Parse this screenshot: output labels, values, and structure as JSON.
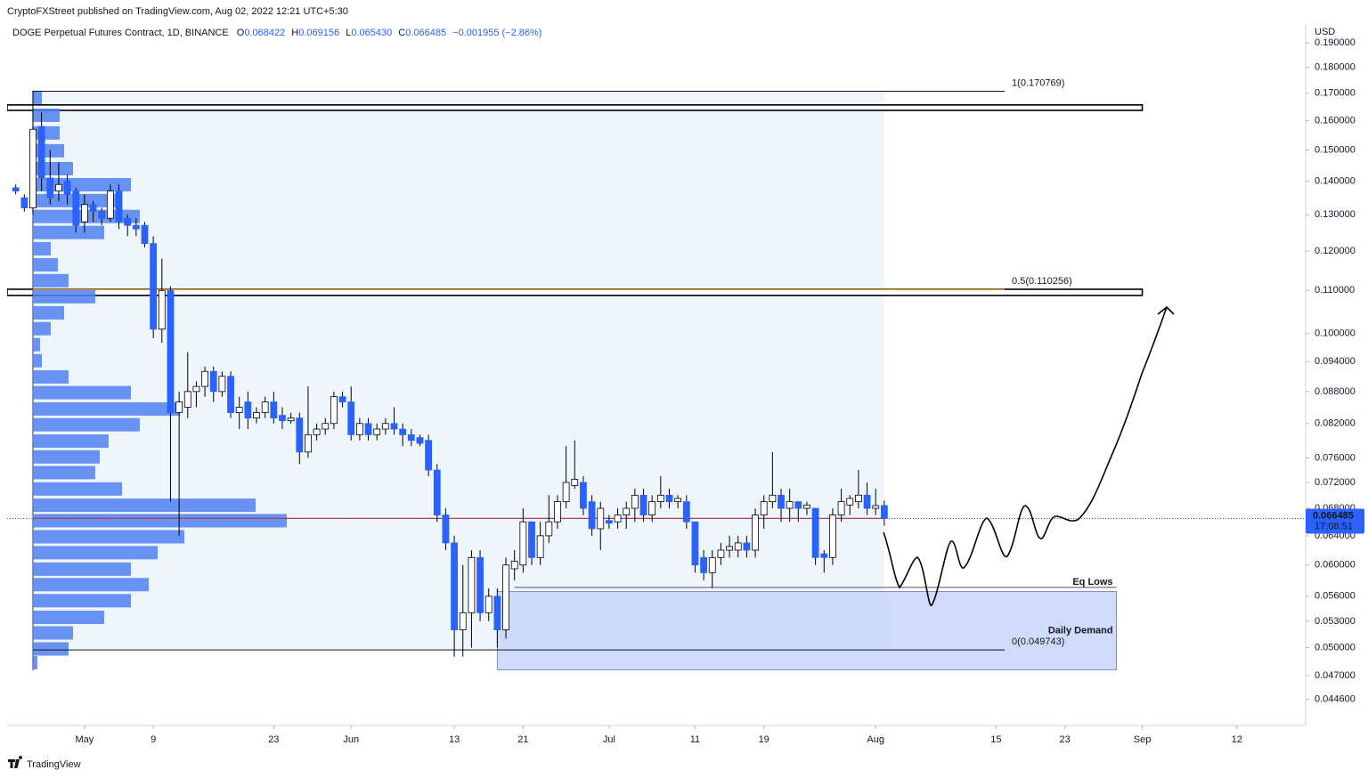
{
  "chart_data": {
    "type": "candlestick",
    "header": {
      "publisher": "CryptoFXStreet published on TradingView.com, Aug 02, 2022 12:21 UTC+5:30",
      "symbol": "DOGE Perpetual Futures Contract, 1D, BINANCE",
      "ohlc": [
        {
          "label": "O",
          "value": "0.068422"
        },
        {
          "label": "H",
          "value": "0.069156"
        },
        {
          "label": "L",
          "value": "0.065430"
        },
        {
          "label": "C",
          "value": "0.066485"
        }
      ],
      "change": "−0.001955 (−2.86%)"
    },
    "currency": "USD",
    "brand": "TradingView",
    "x": [
      "2022-04-23",
      "2022-04-24",
      "2022-04-25",
      "2022-04-26",
      "2022-04-27",
      "2022-04-28",
      "2022-04-29",
      "2022-04-30",
      "2022-05-01",
      "2022-05-02",
      "2022-05-03",
      "2022-05-04",
      "2022-05-05",
      "2022-05-06",
      "2022-05-07",
      "2022-05-08",
      "2022-05-09",
      "2022-05-10",
      "2022-05-11",
      "2022-05-12",
      "2022-05-13",
      "2022-05-14",
      "2022-05-15",
      "2022-05-16",
      "2022-05-17",
      "2022-05-18",
      "2022-05-19",
      "2022-05-20",
      "2022-05-21",
      "2022-05-22",
      "2022-05-23",
      "2022-05-24",
      "2022-05-25",
      "2022-05-26",
      "2022-05-27",
      "2022-05-28",
      "2022-05-29",
      "2022-05-30",
      "2022-05-31",
      "2022-06-01",
      "2022-06-02",
      "2022-06-03",
      "2022-06-04",
      "2022-06-05",
      "2022-06-06",
      "2022-06-07",
      "2022-06-08",
      "2022-06-09",
      "2022-06-10",
      "2022-06-11",
      "2022-06-12",
      "2022-06-13",
      "2022-06-14",
      "2022-06-15",
      "2022-06-16",
      "2022-06-17",
      "2022-06-18",
      "2022-06-19",
      "2022-06-20",
      "2022-06-21",
      "2022-06-22",
      "2022-06-23",
      "2022-06-24",
      "2022-06-25",
      "2022-06-26",
      "2022-06-27",
      "2022-06-28",
      "2022-06-29",
      "2022-06-30",
      "2022-07-01",
      "2022-07-02",
      "2022-07-03",
      "2022-07-04",
      "2022-07-05",
      "2022-07-06",
      "2022-07-07",
      "2022-07-08",
      "2022-07-09",
      "2022-07-10",
      "2022-07-11",
      "2022-07-12",
      "2022-07-13",
      "2022-07-14",
      "2022-07-15",
      "2022-07-16",
      "2022-07-17",
      "2022-07-18",
      "2022-07-19",
      "2022-07-20",
      "2022-07-21",
      "2022-07-22",
      "2022-07-23",
      "2022-07-24",
      "2022-07-25",
      "2022-07-26",
      "2022-07-27",
      "2022-07-28",
      "2022-07-29",
      "2022-07-30",
      "2022-07-31",
      "2022-08-01",
      "2022-08-02"
    ],
    "open": [
      0.138,
      0.135,
      0.132,
      0.158,
      0.141,
      0.137,
      0.14,
      0.137,
      0.128,
      0.133,
      0.131,
      0.129,
      0.137,
      0.129,
      0.127,
      0.127,
      0.122,
      0.101,
      0.11,
      0.084,
      0.085,
      0.088,
      0.089,
      0.092,
      0.088,
      0.091,
      0.084,
      0.086,
      0.083,
      0.084,
      0.086,
      0.0835,
      0.0825,
      0.083,
      0.077,
      0.08,
      0.081,
      0.082,
      0.087,
      0.086,
      0.08,
      0.082,
      0.08,
      0.081,
      0.082,
      0.081,
      0.08,
      0.0795,
      0.079,
      0.074,
      0.067,
      0.063,
      0.052,
      0.054,
      0.061,
      0.054,
      0.056,
      0.052,
      0.0595,
      0.06,
      0.066,
      0.061,
      0.064,
      0.066,
      0.069,
      0.0715,
      0.072,
      0.069,
      0.065,
      0.0662,
      0.066,
      0.067,
      0.068,
      0.07,
      0.067,
      0.069,
      0.07,
      0.069,
      0.069,
      0.066,
      0.061,
      0.059,
      0.061,
      0.062,
      0.062,
      0.063,
      0.062,
      0.067,
      0.069,
      0.07,
      0.068,
      0.069,
      0.068,
      0.068,
      0.0615,
      0.061,
      0.067,
      0.0685,
      0.069,
      0.07,
      0.068,
      0.068422
    ],
    "high": [
      0.139,
      0.136,
      0.171,
      0.163,
      0.15,
      0.146,
      0.142,
      0.138,
      0.136,
      0.134,
      0.132,
      0.139,
      0.139,
      0.13,
      0.129,
      0.128,
      0.124,
      0.118,
      0.111,
      0.088,
      0.096,
      0.09,
      0.093,
      0.093,
      0.092,
      0.092,
      0.087,
      0.088,
      0.085,
      0.087,
      0.088,
      0.085,
      0.084,
      0.084,
      0.089,
      0.082,
      0.083,
      0.088,
      0.088,
      0.089,
      0.083,
      0.083,
      0.082,
      0.083,
      0.085,
      0.082,
      0.081,
      0.08,
      0.08,
      0.075,
      0.068,
      0.064,
      0.06,
      0.062,
      0.062,
      0.057,
      0.057,
      0.061,
      0.062,
      0.068,
      0.066,
      0.066,
      0.07,
      0.07,
      0.078,
      0.079,
      0.073,
      0.07,
      0.069,
      0.067,
      0.068,
      0.069,
      0.071,
      0.071,
      0.07,
      0.073,
      0.071,
      0.07,
      0.07,
      0.066,
      0.062,
      0.062,
      0.063,
      0.064,
      0.064,
      0.064,
      0.068,
      0.07,
      0.077,
      0.071,
      0.071,
      0.069,
      0.069,
      0.068,
      0.062,
      0.068,
      0.071,
      0.07,
      0.074,
      0.072,
      0.071,
      0.069156
    ],
    "low": [
      0.136,
      0.131,
      0.13,
      0.137,
      0.133,
      0.134,
      0.133,
      0.125,
      0.125,
      0.128,
      0.127,
      0.128,
      0.126,
      0.124,
      0.124,
      0.121,
      0.099,
      0.098,
      0.069,
      0.064,
      0.083,
      0.085,
      0.087,
      0.086,
      0.087,
      0.083,
      0.081,
      0.081,
      0.082,
      0.083,
      0.082,
      0.081,
      0.082,
      0.075,
      0.076,
      0.079,
      0.08,
      0.081,
      0.085,
      0.079,
      0.079,
      0.079,
      0.079,
      0.08,
      0.08,
      0.078,
      0.078,
      0.078,
      0.073,
      0.066,
      0.062,
      0.049,
      0.049,
      0.05,
      0.053,
      0.053,
      0.05,
      0.051,
      0.058,
      0.059,
      0.06,
      0.06,
      0.063,
      0.065,
      0.068,
      0.071,
      0.067,
      0.064,
      0.062,
      0.065,
      0.065,
      0.065,
      0.066,
      0.066,
      0.066,
      0.068,
      0.068,
      0.068,
      0.065,
      0.059,
      0.058,
      0.057,
      0.06,
      0.061,
      0.061,
      0.061,
      0.061,
      0.065,
      0.068,
      0.066,
      0.066,
      0.066,
      0.067,
      0.06,
      0.059,
      0.06,
      0.066,
      0.067,
      0.068,
      0.067,
      0.067,
      0.06543
    ],
    "close": [
      0.137,
      0.132,
      0.157,
      0.141,
      0.135,
      0.139,
      0.136,
      0.127,
      0.133,
      0.131,
      0.129,
      0.137,
      0.128,
      0.127,
      0.126,
      0.122,
      0.101,
      0.11,
      0.084,
      0.086,
      0.088,
      0.089,
      0.092,
      0.088,
      0.091,
      0.084,
      0.085,
      0.083,
      0.084,
      0.086,
      0.083,
      0.0825,
      0.083,
      0.077,
      0.08,
      0.081,
      0.082,
      0.087,
      0.086,
      0.08,
      0.082,
      0.08,
      0.081,
      0.082,
      0.081,
      0.08,
      0.079,
      0.0785,
      0.074,
      0.067,
      0.063,
      0.052,
      0.054,
      0.061,
      0.054,
      0.056,
      0.052,
      0.06,
      0.0605,
      0.066,
      0.061,
      0.064,
      0.066,
      0.069,
      0.072,
      0.0725,
      0.068,
      0.065,
      0.068,
      0.0658,
      0.067,
      0.068,
      0.07,
      0.067,
      0.069,
      0.07,
      0.069,
      0.0695,
      0.066,
      0.06,
      0.059,
      0.061,
      0.062,
      0.0625,
      0.063,
      0.062,
      0.067,
      0.069,
      0.07,
      0.068,
      0.069,
      0.068,
      0.0685,
      0.061,
      0.061,
      0.067,
      0.069,
      0.0695,
      0.07,
      0.068,
      0.0684,
      0.066485
    ],
    "up_color": "#ffffff",
    "down_color": "#2962ff",
    "wick_color": "#000000",
    "xlim": [
      "2022-04-22",
      "2022-09-20"
    ],
    "xticks": [
      {
        "value": "2022-05-01",
        "label": "May"
      },
      {
        "value": "2022-05-09",
        "label": "9"
      },
      {
        "value": "2022-05-23",
        "label": "23"
      },
      {
        "value": "2022-06-01",
        "label": "Jun"
      },
      {
        "value": "2022-06-13",
        "label": "13"
      },
      {
        "value": "2022-06-21",
        "label": "21"
      },
      {
        "value": "2022-07-01",
        "label": "Jul"
      },
      {
        "value": "2022-07-11",
        "label": "11"
      },
      {
        "value": "2022-07-19",
        "label": "19"
      },
      {
        "value": "2022-08-01",
        "label": "Aug"
      },
      {
        "value": "2022-08-15",
        "label": "15"
      },
      {
        "value": "2022-08-23",
        "label": "23"
      },
      {
        "value": "2022-09-01",
        "label": "Sep"
      },
      {
        "value": "2022-09-12",
        "label": "12"
      }
    ],
    "ylim": [
      0.0421,
      0.1977
    ],
    "log_scale": true,
    "yticks": [
      {
        "value": 0.19,
        "label": "0.190000"
      },
      {
        "value": 0.18,
        "label": "0.180000"
      },
      {
        "value": 0.17,
        "label": "0.170000"
      },
      {
        "value": 0.16,
        "label": "0.160000"
      },
      {
        "value": 0.15,
        "label": "0.150000"
      },
      {
        "value": 0.14,
        "label": "0.140000"
      },
      {
        "value": 0.13,
        "label": "0.130000"
      },
      {
        "value": 0.12,
        "label": "0.120000"
      },
      {
        "value": 0.11,
        "label": "0.110000"
      },
      {
        "value": 0.1,
        "label": "0.100000"
      },
      {
        "value": 0.094,
        "label": "0.094000"
      },
      {
        "value": 0.088,
        "label": "0.088000"
      },
      {
        "value": 0.082,
        "label": "0.082000"
      },
      {
        "value": 0.076,
        "label": "0.076000"
      },
      {
        "value": 0.072,
        "label": "0.072000"
      },
      {
        "value": 0.068,
        "label": "0.068000"
      },
      {
        "value": 0.064,
        "label": "0.064000"
      },
      {
        "value": 0.06,
        "label": "0.060000"
      },
      {
        "value": 0.056,
        "label": "0.056000"
      },
      {
        "value": 0.053,
        "label": "0.053000"
      },
      {
        "value": 0.05,
        "label": "0.050000"
      },
      {
        "value": 0.047,
        "label": "0.047000"
      },
      {
        "value": 0.0446,
        "label": "0.044600"
      }
    ],
    "last_price": {
      "value": 0.066485,
      "countdown": "17:08:51",
      "color": "#2962ff"
    },
    "poc": {
      "value": 0.0665,
      "from": "2022-04-25",
      "to": "2022-08-02",
      "color": "#d32f2f"
    },
    "fib": {
      "from": "2022-04-25",
      "to": "2022-08-16",
      "shade_to": "2022-08-02",
      "shade_color": "#eef6fb",
      "levels": [
        {
          "value": 0.170769,
          "label": "1(0.170769)",
          "color": "#131722"
        },
        {
          "value": 0.110256,
          "label": "0.5(0.110256)",
          "color": "#f5a623"
        },
        {
          "value": 0.049743,
          "label": "0(0.049743)",
          "color": "#131722"
        }
      ]
    },
    "zones": [
      {
        "low": 0.1637,
        "high": 0.1657,
        "from": "2022-04-22",
        "to": "2022-09-01"
      },
      {
        "low": 0.1088,
        "high": 0.1103,
        "from": "2022-04-22",
        "to": "2022-09-01"
      }
    ],
    "demand": {
      "label": "Daily Demand",
      "low": 0.0476,
      "high": 0.0566,
      "from": "2022-06-18",
      "to": "2022-08-29",
      "color": "#c7d5f8"
    },
    "eq_lows": {
      "label": "Eq Lows",
      "value": 0.0571,
      "from": "2022-06-20",
      "to": "2022-08-29"
    },
    "volume_profile": {
      "color": "#4f7ff0",
      "from": "2022-04-25",
      "prices": [
        0.1683,
        0.1618,
        0.1556,
        0.1496,
        0.1438,
        0.1388,
        0.134,
        0.1294,
        0.1249,
        0.1205,
        0.1163,
        0.1123,
        0.1084,
        0.1046,
        0.101,
        0.0975,
        0.0941,
        0.0908,
        0.0877,
        0.0846,
        0.0817,
        0.0788,
        0.0761,
        0.0735,
        0.0709,
        0.0684,
        0.0661,
        0.0638,
        0.0616,
        0.0594,
        0.0574,
        0.0554,
        0.0534,
        0.0516,
        0.0498,
        0.0483
      ],
      "volumes": [
        10,
        30,
        30,
        35,
        45,
        110,
        95,
        120,
        80,
        20,
        28,
        40,
        70,
        35,
        20,
        8,
        10,
        40,
        110,
        165,
        120,
        85,
        75,
        70,
        100,
        250,
        285,
        170,
        140,
        110,
        130,
        110,
        80,
        45,
        40,
        5
      ]
    }
  }
}
